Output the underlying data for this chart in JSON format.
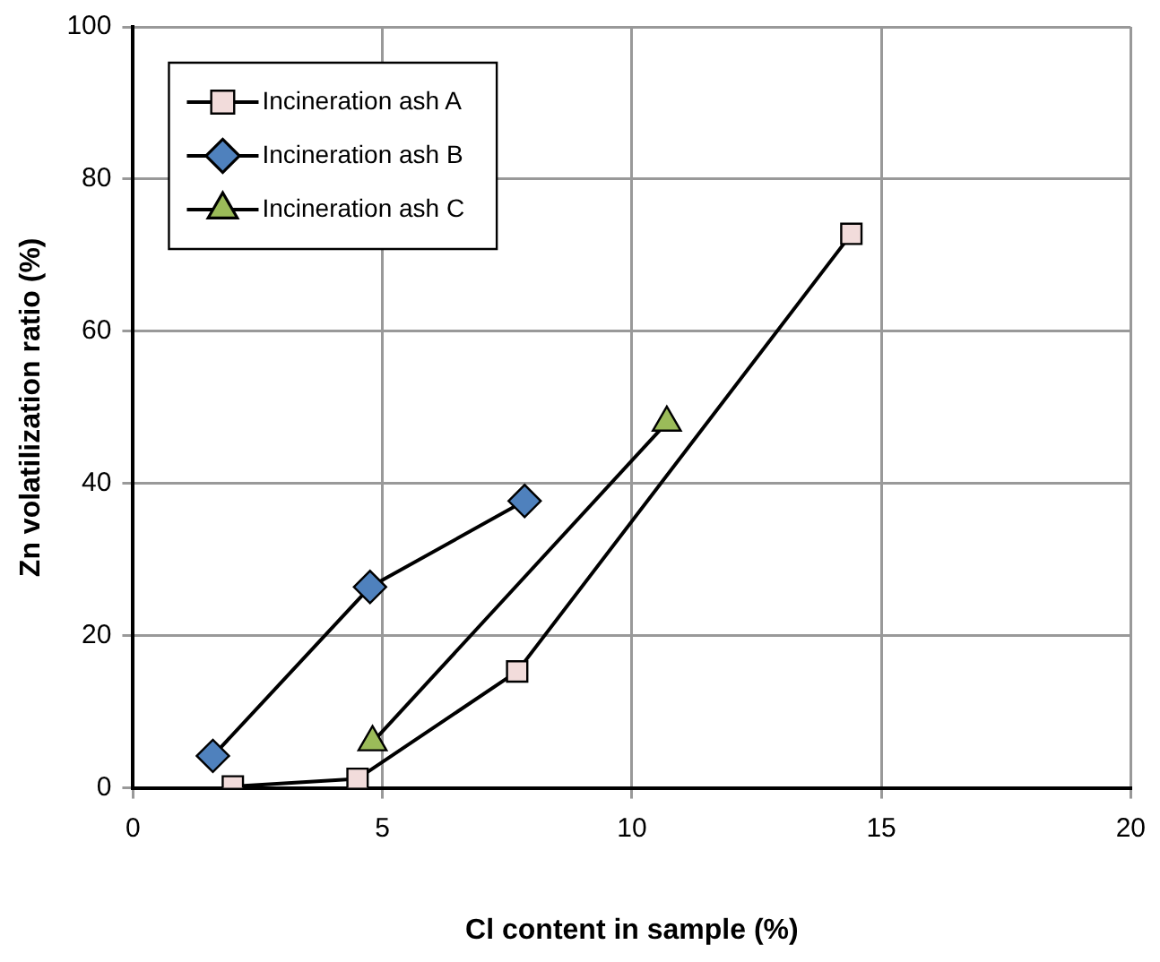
{
  "chart_data": {
    "type": "line",
    "xlabel": "Cl content in sample (%)",
    "ylabel": "Zn volatilization ratio (%)",
    "xlim": [
      0,
      20
    ],
    "xticks": [
      0,
      5,
      10,
      15,
      20
    ],
    "ylim": [
      0,
      100
    ],
    "yticks": [
      0,
      20,
      40,
      60,
      80,
      100
    ],
    "grid": true,
    "legend": "top left",
    "series": [
      {
        "name": "Incineration ash A",
        "color": "#f2dcdb",
        "marker": "square",
        "x": [
          2.0,
          4.5,
          7.7,
          14.4
        ],
        "values": [
          0.2,
          1.2,
          15.3,
          72.8
        ]
      },
      {
        "name": "Incineration ash B",
        "color": "#4f81bd",
        "marker": "diamond",
        "x": [
          1.6,
          4.75,
          7.85
        ],
        "values": [
          4.2,
          26.4,
          37.7
        ]
      },
      {
        "name": "Incineration ash C",
        "color": "#9bbb59",
        "marker": "triangle",
        "x": [
          4.8,
          10.7
        ],
        "values": [
          6,
          48
        ]
      }
    ]
  }
}
